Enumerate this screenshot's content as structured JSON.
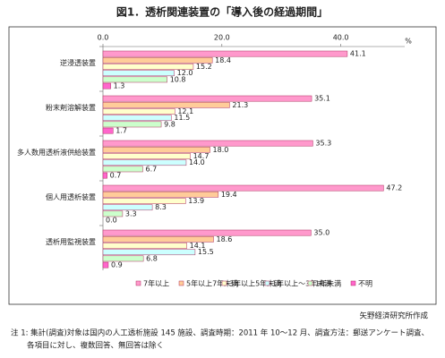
{
  "chart_data": {
    "type": "hbar",
    "title": "図1．透析関連装置の「導入後の経過期間」",
    "x_unit": "%",
    "categories": [
      "逆浸透装置",
      "粉末剤溶解装置",
      "多人数用透析液供給装置",
      "個人用透析装置",
      "透析用監視装置"
    ],
    "series": [
      {
        "name": "7年以上",
        "color": "#ff99cc",
        "values": [
          41.1,
          35.1,
          35.3,
          47.2,
          35.0
        ],
        "value_labels": [
          "41.1",
          "35.1",
          "35.3",
          "47.2",
          "35.0"
        ]
      },
      {
        "name": "5年以上7年未満",
        "color": "#ffcc99",
        "values": [
          18.4,
          21.3,
          18.0,
          19.4,
          18.6
        ],
        "value_labels": [
          "18.4",
          "21.3",
          "18.0",
          "19.4",
          "18.6"
        ]
      },
      {
        "name": "3年以上5年未満",
        "color": "#ffffcc",
        "values": [
          15.2,
          12.1,
          14.7,
          13.9,
          14.1
        ],
        "value_labels": [
          "15.2",
          "12.1",
          "14.7",
          "13.9",
          "14.1"
        ]
      },
      {
        "name": "1年以上～3年未満",
        "color": "#ccffff",
        "values": [
          12.0,
          11.5,
          14.0,
          8.3,
          15.5
        ],
        "value_labels": [
          "12.0",
          "11.5",
          "14.0",
          "8.3",
          "15.5"
        ]
      },
      {
        "name": "1年未満",
        "color": "#ccffcc",
        "values": [
          10.8,
          9.8,
          6.7,
          3.3,
          6.8
        ],
        "value_labels": [
          "10.8",
          "9.8",
          "6.7",
          "3.3",
          "6.8"
        ]
      },
      {
        "name": "不明",
        "color": "#ff66cc",
        "values": [
          1.3,
          1.7,
          0.7,
          0.0,
          0.9
        ],
        "value_labels": [
          "1.3",
          "1.7",
          "0.7",
          "0.0",
          "0.9"
        ]
      }
    ],
    "xlim": [
      0,
      50
    ],
    "xticks": [
      {
        "value": 0,
        "label": "0.0"
      },
      {
        "value": 20,
        "label": "20.0"
      },
      {
        "value": 40,
        "label": "40.0"
      }
    ],
    "grid": false,
    "source": "矢野経済研究所作成",
    "notes": [
      "注 1: 集計(調査)対象は国内の人工透析施設 145 施設、調査時期：2011 年 10～12 月、調査方法：郵送アンケート調査、",
      "各項目に対し、複数回答、無回答は除く"
    ]
  }
}
